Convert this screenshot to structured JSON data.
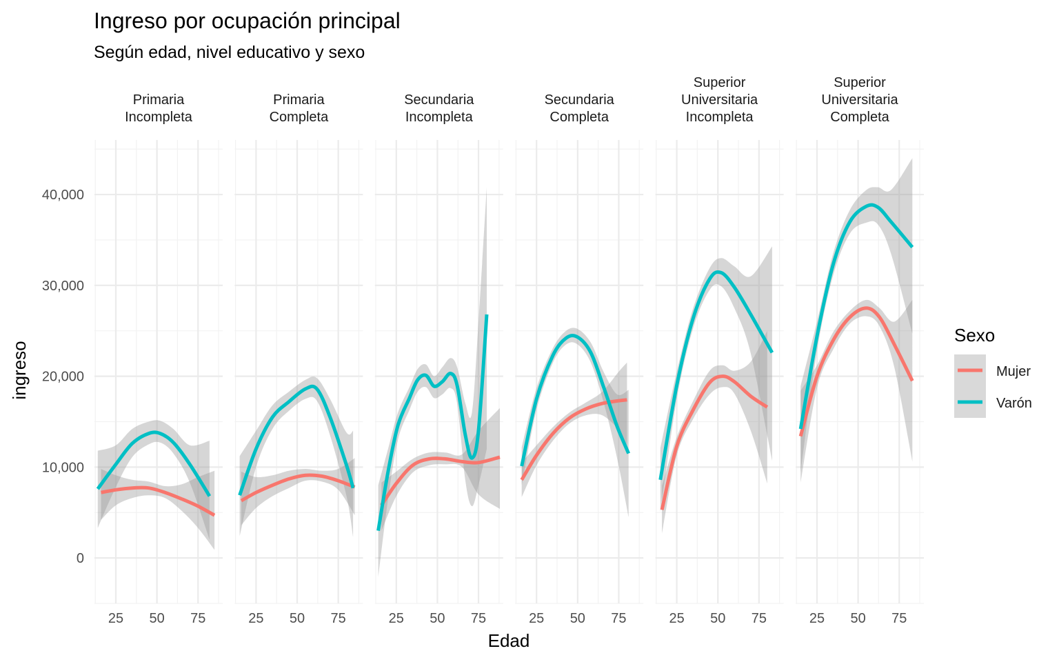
{
  "chart_data": {
    "type": "line",
    "title": "Ingreso por ocupación principal",
    "subtitle": "Según edad, nivel educativo y sexo",
    "xlabel": "Edad",
    "ylabel": "ingreso",
    "xticks": [
      25,
      50,
      75
    ],
    "yticks": [
      0,
      10000,
      20000,
      30000,
      40000
    ],
    "ytick_labels": [
      "0",
      "10,000",
      "20,000",
      "30,000",
      "40,000"
    ],
    "ylim": [
      -5000,
      46000
    ],
    "xlim": [
      12,
      90
    ],
    "grid": true,
    "legend": {
      "title": "Sexo",
      "position": "right",
      "entries": [
        {
          "name": "Mujer",
          "color": "#F8766D"
        },
        {
          "name": "Varón",
          "color": "#00BFC4"
        }
      ]
    },
    "ribbon_color": "#999999",
    "facets": [
      {
        "label": [
          "Primaria",
          "Incompleta"
        ],
        "series": [
          {
            "name": "Mujer",
            "points": [
              [
                16,
                7200
              ],
              [
                25,
                7500
              ],
              [
                35,
                7700
              ],
              [
                45,
                7700
              ],
              [
                55,
                7200
              ],
              [
                65,
                6500
              ],
              [
                75,
                5700
              ],
              [
                85,
                4700
              ]
            ],
            "lo": [
              4200,
              5800,
              6600,
              6900,
              6600,
              5200,
              3300,
              900
            ],
            "hi": [
              9800,
              9100,
              8600,
              8400,
              7900,
              8100,
              8900,
              9600
            ]
          },
          {
            "name": "Varón",
            "points": [
              [
                14,
                7600
              ],
              [
                25,
                10300
              ],
              [
                35,
                12600
              ],
              [
                45,
                13700
              ],
              [
                52,
                13700
              ],
              [
                60,
                12700
              ],
              [
                70,
                10300
              ],
              [
                82,
                6800
              ]
            ],
            "lo": [
              3300,
              7800,
              11100,
              12500,
              12700,
              11500,
              8300,
              2000
            ],
            "hi": [
              11800,
              12400,
              14200,
              15000,
              15100,
              14200,
              12400,
              12900
            ]
          }
        ]
      },
      {
        "label": [
          "Primaria",
          "Completa"
        ],
        "series": [
          {
            "name": "Mujer",
            "points": [
              [
                16,
                6300
              ],
              [
                25,
                7200
              ],
              [
                35,
                8000
              ],
              [
                45,
                8700
              ],
              [
                55,
                9100
              ],
              [
                65,
                9000
              ],
              [
                75,
                8500
              ],
              [
                85,
                7800
              ]
            ],
            "lo": [
              3600,
              5500,
              6800,
              7700,
              8500,
              8400,
              7500,
              4700
            ],
            "hi": [
              9500,
              8900,
              9100,
              9600,
              9800,
              9600,
              9800,
              11000
            ]
          },
          {
            "name": "Varón",
            "points": [
              [
                15,
                6900
              ],
              [
                25,
                12000
              ],
              [
                35,
                15500
              ],
              [
                45,
                17200
              ],
              [
                55,
                18600
              ],
              [
                62,
                18600
              ],
              [
                70,
                15500
              ],
              [
                80,
                10200
              ],
              [
                84,
                7700
              ]
            ],
            "lo": [
              2400,
              10000,
              14200,
              16200,
              17500,
              17300,
              13500,
              6800,
              2300
            ],
            "hi": [
              11200,
              14000,
              16800,
              18300,
              19600,
              19800,
              17500,
              13800,
              14000
            ]
          }
        ]
      },
      {
        "label": [
          "Secundaria",
          "Incompleta"
        ],
        "series": [
          {
            "name": "Mujer",
            "points": [
              [
                16,
                5800
              ],
              [
                25,
                8200
              ],
              [
                35,
                10200
              ],
              [
                45,
                10900
              ],
              [
                55,
                10900
              ],
              [
                65,
                10600
              ],
              [
                75,
                10500
              ],
              [
                88,
                11100
              ]
            ],
            "lo": [
              3000,
              6800,
              9400,
              10200,
              10300,
              10000,
              7000,
              5400
            ],
            "hi": [
              8300,
              9500,
              10900,
              11600,
              11600,
              11400,
              14000,
              16500
            ]
          },
          {
            "name": "Varón",
            "points": [
              [
                14,
                3000
              ],
              [
                20,
                9500
              ],
              [
                26,
                14600
              ],
              [
                33,
                17600
              ],
              [
                38,
                19600
              ],
              [
                43,
                20100
              ],
              [
                48,
                18900
              ],
              [
                53,
                19400
              ],
              [
                58,
                20300
              ],
              [
                62,
                19000
              ],
              [
                67,
                13500
              ],
              [
                71,
                11000
              ],
              [
                75,
                14000
              ],
              [
                80,
                26800
              ]
            ],
            "lo": [
              -2100,
              6500,
              13000,
              16300,
              18300,
              18800,
              17600,
              18000,
              18700,
              17000,
              8500,
              5700,
              8000,
              12000
            ],
            "hi": [
              8000,
              12000,
              16000,
              18800,
              20800,
              21300,
              20000,
              21000,
              22000,
              21000,
              17000,
              16000,
              26000,
              40800
            ]
          }
        ]
      },
      {
        "label": [
          "Secundaria",
          "Completa"
        ],
        "series": [
          {
            "name": "Mujer",
            "points": [
              [
                16,
                8600
              ],
              [
                25,
                11300
              ],
              [
                35,
                13700
              ],
              [
                45,
                15400
              ],
              [
                55,
                16400
              ],
              [
                65,
                17000
              ],
              [
                75,
                17300
              ],
              [
                80,
                17400
              ]
            ],
            "lo": [
              6700,
              10200,
              12900,
              14800,
              15700,
              15700,
              14100,
              12400
            ],
            "hi": [
              10500,
              12400,
              14400,
              16000,
              17100,
              18300,
              20500,
              21500
            ]
          },
          {
            "name": "Varón",
            "points": [
              [
                16,
                10100
              ],
              [
                25,
                17500
              ],
              [
                35,
                22300
              ],
              [
                43,
                24200
              ],
              [
                50,
                24300
              ],
              [
                58,
                22600
              ],
              [
                66,
                18700
              ],
              [
                74,
                14500
              ],
              [
                81,
                11500
              ]
            ],
            "lo": [
              8000,
              16300,
              21500,
              23500,
              23500,
              21500,
              17000,
              11000,
              4500
            ],
            "hi": [
              12200,
              18700,
              23100,
              25000,
              25200,
              23700,
              20400,
              18000,
              18500
            ]
          }
        ]
      },
      {
        "label": [
          "Superior",
          "Universitaria",
          "Incompleta"
        ],
        "series": [
          {
            "name": "Mujer",
            "points": [
              [
                16,
                5300
              ],
              [
                25,
                12300
              ],
              [
                35,
                16300
              ],
              [
                45,
                19300
              ],
              [
                53,
                20000
              ],
              [
                60,
                19400
              ],
              [
                70,
                17800
              ],
              [
                80,
                16600
              ]
            ],
            "lo": [
              2700,
              11300,
              15300,
              18000,
              18800,
              18100,
              14000,
              8200
            ],
            "hi": [
              7900,
              13300,
              17300,
              20600,
              21200,
              20600,
              21600,
              25000
            ]
          },
          {
            "name": "Varón",
            "points": [
              [
                15,
                8600
              ],
              [
                25,
                19000
              ],
              [
                35,
                26400
              ],
              [
                45,
                30700
              ],
              [
                52,
                31400
              ],
              [
                60,
                29800
              ],
              [
                70,
                26800
              ],
              [
                83,
                22600
              ]
            ],
            "lo": [
              5000,
              17500,
              25300,
              29500,
              29900,
              27500,
              22500,
              10700
            ],
            "hi": [
              12100,
              20500,
              27500,
              31900,
              33000,
              32100,
              31000,
              34300
            ]
          }
        ]
      },
      {
        "label": [
          "Superior",
          "Universitaria",
          "Completa"
        ],
        "series": [
          {
            "name": "Mujer",
            "points": [
              [
                15,
                13400
              ],
              [
                25,
                20000
              ],
              [
                35,
                24000
              ],
              [
                45,
                26500
              ],
              [
                55,
                27500
              ],
              [
                63,
                26500
              ],
              [
                72,
                23500
              ],
              [
                83,
                19500
              ]
            ],
            "lo": [
              8300,
              18700,
              23000,
              25800,
              26600,
              25500,
              21000,
              10600
            ],
            "hi": [
              18400,
              21200,
              24900,
              27200,
              28400,
              27500,
              26000,
              28400
            ]
          },
          {
            "name": "Varón",
            "points": [
              [
                15,
                14200
              ],
              [
                25,
                24400
              ],
              [
                35,
                32400
              ],
              [
                45,
                37000
              ],
              [
                55,
                38700
              ],
              [
                62,
                38600
              ],
              [
                70,
                37000
              ],
              [
                83,
                34200
              ]
            ],
            "lo": [
              9400,
              22800,
              31200,
              35700,
              36900,
              36700,
              33500,
              24700
            ],
            "hi": [
              18900,
              26000,
              33600,
              38300,
              40500,
              40800,
              40500,
              44000
            ]
          }
        ]
      }
    ]
  }
}
